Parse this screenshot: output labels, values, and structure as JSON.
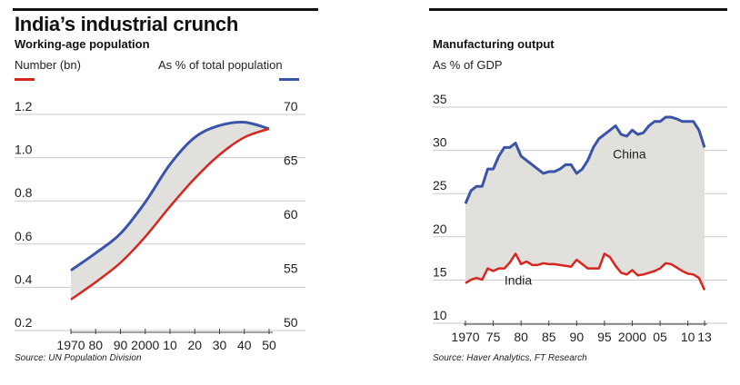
{
  "colors": {
    "red": "#d7261e",
    "blue": "#3a54a8",
    "fill": "#e2e0dc",
    "grid": "#c9c9c9"
  },
  "left": {
    "title": "India’s industrial crunch",
    "subtitle": "Working-age population",
    "legend_left": "Number  (bn)",
    "legend_right": "As % of total population",
    "source": "Source: UN Population Division"
  },
  "right": {
    "subtitle": "Manufacturing output",
    "unit": "As % of GDP",
    "source": "Source: Haver Analytics, FT Research"
  },
  "chart_data": [
    {
      "type": "line",
      "title": "Working-age population",
      "x_tick_labels": [
        "1970",
        "80",
        "90",
        "2000",
        "10",
        "20",
        "30",
        "40",
        "50"
      ],
      "x_ticks": [
        1970,
        1980,
        1990,
        2000,
        2010,
        2020,
        2030,
        2040,
        2050
      ],
      "xlim": [
        1970,
        2050
      ],
      "left_axis": {
        "label": "Number  (bn)",
        "ticks": [
          0.2,
          0.4,
          0.6,
          0.8,
          1.0,
          1.2
        ],
        "tick_labels": [
          "0.2",
          "0.4",
          "0.6",
          "0.8",
          "1.0",
          "1.2"
        ],
        "ylim": [
          0.2,
          1.2
        ]
      },
      "right_axis": {
        "label": "As % of total population",
        "ticks": [
          50,
          55,
          60,
          65,
          70
        ],
        "tick_labels": [
          "50",
          "55",
          "60",
          "65",
          "70"
        ],
        "ylim": [
          50,
          70
        ]
      },
      "grid": true,
      "area_shaded_between_series": true,
      "series": [
        {
          "name": "Number  (bn)",
          "axis": "left",
          "color": "red",
          "x": [
            1970,
            1980,
            1990,
            2000,
            2010,
            2020,
            2030,
            2040,
            2050
          ],
          "values": [
            0.31,
            0.39,
            0.48,
            0.6,
            0.74,
            0.87,
            0.98,
            1.06,
            1.1
          ]
        },
        {
          "name": "As % of total population",
          "axis": "right",
          "color": "blue",
          "x": [
            1970,
            1980,
            1990,
            2000,
            2010,
            2020,
            2030,
            2040,
            2050
          ],
          "values": [
            54.9,
            56.5,
            58.3,
            61.2,
            64.7,
            67.2,
            68.3,
            68.6,
            68.0
          ]
        }
      ]
    },
    {
      "type": "line",
      "title": "Manufacturing output",
      "ylabel": "As % of GDP",
      "x_tick_labels": [
        "1970",
        "75",
        "80",
        "85",
        "90",
        "95",
        "2000",
        "05",
        "10",
        "13"
      ],
      "x_ticks": [
        1970,
        1975,
        1980,
        1985,
        1990,
        1995,
        2000,
        2005,
        2010,
        2013
      ],
      "xlim": [
        1970,
        2013
      ],
      "ylim": [
        10,
        35
      ],
      "y_ticks": [
        10,
        15,
        20,
        25,
        30,
        35
      ],
      "y_tick_labels": [
        "10",
        "15",
        "20",
        "25",
        "30",
        "35"
      ],
      "grid": true,
      "area_shaded_between_series": true,
      "series": [
        {
          "name": "China",
          "color": "blue",
          "x": [
            1970,
            1971,
            1972,
            1973,
            1974,
            1975,
            1976,
            1977,
            1978,
            1979,
            1980,
            1981,
            1982,
            1983,
            1984,
            1985,
            1986,
            1987,
            1988,
            1989,
            1990,
            1991,
            1992,
            1993,
            1994,
            1995,
            1996,
            1997,
            1998,
            1999,
            2000,
            2001,
            2002,
            2003,
            2004,
            2005,
            2006,
            2007,
            2008,
            2009,
            2010,
            2011,
            2012,
            2013
          ],
          "values": [
            23.0,
            24.5,
            25.0,
            25.0,
            27.0,
            27.0,
            28.5,
            29.5,
            29.5,
            30.0,
            28.5,
            28.0,
            27.5,
            27.0,
            26.5,
            26.7,
            26.7,
            27.0,
            27.5,
            27.5,
            26.5,
            27.0,
            28.0,
            29.5,
            30.5,
            31.0,
            31.5,
            32.0,
            31.0,
            30.8,
            31.5,
            31.0,
            31.2,
            32.0,
            32.5,
            32.5,
            33.0,
            33.0,
            32.8,
            32.5,
            32.5,
            32.5,
            31.5,
            29.5
          ]
        },
        {
          "name": "India",
          "color": "red",
          "x": [
            1970,
            1971,
            1972,
            1973,
            1974,
            1975,
            1976,
            1977,
            1978,
            1979,
            1980,
            1981,
            1982,
            1983,
            1984,
            1985,
            1986,
            1987,
            1988,
            1989,
            1990,
            1991,
            1992,
            1993,
            1994,
            1995,
            1996,
            1997,
            1998,
            1999,
            2000,
            2001,
            2002,
            2003,
            2004,
            2005,
            2006,
            2007,
            2008,
            2009,
            2010,
            2011,
            2012,
            2013
          ],
          "values": [
            13.8,
            14.2,
            14.4,
            14.2,
            15.5,
            15.2,
            15.5,
            15.5,
            16.2,
            17.2,
            16.0,
            16.3,
            15.9,
            15.9,
            16.1,
            16.0,
            16.0,
            15.9,
            15.8,
            15.7,
            16.5,
            16.0,
            15.5,
            15.5,
            15.5,
            17.2,
            16.8,
            15.8,
            15.0,
            14.8,
            15.3,
            14.7,
            14.8,
            15.0,
            15.2,
            15.5,
            16.1,
            16.0,
            15.6,
            15.2,
            14.9,
            14.8,
            14.4,
            13.0
          ]
        }
      ],
      "annotations": [
        "China",
        "India"
      ]
    }
  ]
}
